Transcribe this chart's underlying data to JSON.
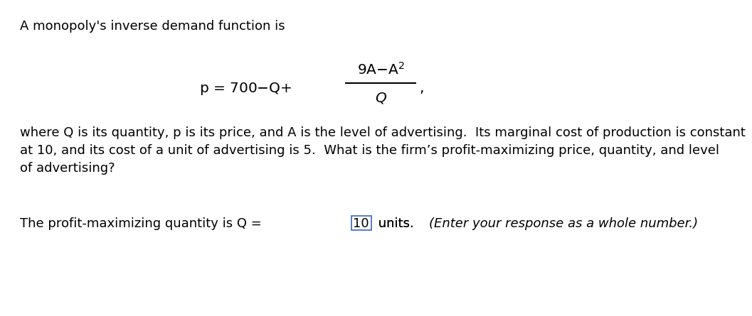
{
  "background_color": "#ffffff",
  "title_line": "A monopoly's inverse demand function is",
  "paragraph1": "where Q is its quantity, p is its price, and A is the level of advertising.  Its marginal cost of production is constant\nat 10, and its cost of a unit of advertising is 5.  What is the firm’s profit-maximizing price, quantity, and level\nof advertising?",
  "answer_prefix": "The profit-maximizing quantity is Q = ",
  "answer_value": "10",
  "answer_suffix": " units.  ",
  "answer_italic": "(Enter your response as a whole number.)",
  "font_size_main": 13.0,
  "font_size_formula": 14.5,
  "box_color": "#4472c4"
}
